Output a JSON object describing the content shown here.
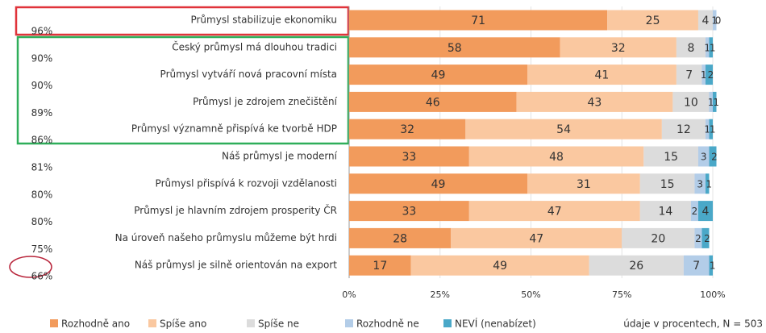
{
  "chart_data": {
    "type": "stacked-bar-horizontal",
    "categories": [
      "Průmysl stabilizuje ekonomiku",
      "Český průmysl má dlouhou tradici",
      "Průmysl vytváří nová pracovní místa",
      "Průmysl je zdrojem znečištění",
      "Průmysl významně přispívá ke tvorbě HDP",
      "Náš průmysl je moderní",
      "Průmysl přispívá k rozvoji vzdělanosti",
      "Průmysl je hlavním zdrojem prosperity ČR",
      "Na úroveň našeho průmyslu můžeme být hrdi",
      "Náš průmysl je silně orientován na export"
    ],
    "side_labels": [
      "96%",
      "90%",
      "90%",
      "89%",
      "86%",
      "81%",
      "80%",
      "80%",
      "75%",
      "66%"
    ],
    "series": [
      {
        "name": "Rozhodně ano",
        "color": "#f29b5c",
        "values": [
          71,
          58,
          49,
          46,
          32,
          33,
          49,
          33,
          28,
          17
        ]
      },
      {
        "name": "Spíše ano",
        "color": "#fac8a0",
        "values": [
          25,
          32,
          41,
          43,
          54,
          48,
          31,
          47,
          47,
          49
        ]
      },
      {
        "name": "Spíše ne",
        "color": "#dcdcdc",
        "values": [
          4,
          8,
          7,
          10,
          12,
          15,
          15,
          14,
          20,
          26
        ]
      },
      {
        "name": "Rozhodně ne",
        "color": "#b3cde8",
        "values": [
          1,
          1,
          1,
          1,
          1,
          3,
          3,
          2,
          2,
          7
        ]
      },
      {
        "name": "NEVÍ (nenabízet)",
        "color": "#4aa8c8",
        "values": [
          0,
          1,
          2,
          1,
          1,
          2,
          1,
          4,
          2,
          1
        ]
      }
    ],
    "xlim": [
      0,
      100
    ],
    "xticks": [
      {
        "value": 0,
        "label": "0%"
      },
      {
        "value": 25,
        "label": "25%"
      },
      {
        "value": 50,
        "label": "50%"
      },
      {
        "value": 75,
        "label": "75%"
      },
      {
        "value": 100,
        "label": "100%"
      }
    ],
    "note": "údaje v procentech, N = 503"
  }
}
